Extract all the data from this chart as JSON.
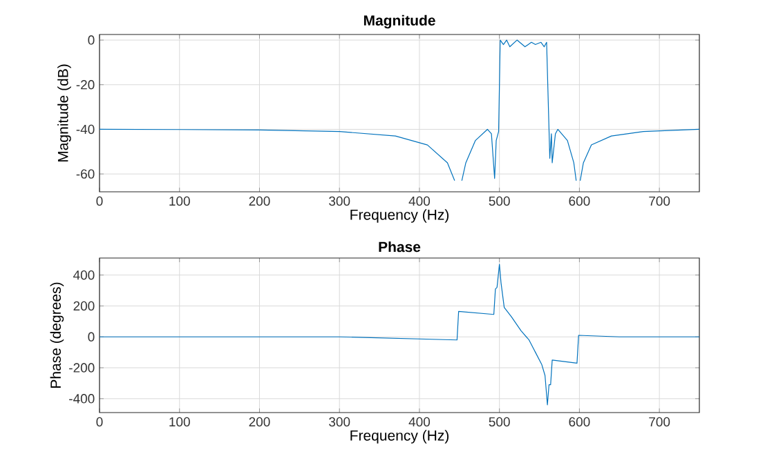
{
  "chart_data": [
    {
      "type": "line",
      "title": "Magnitude",
      "xlabel": "Frequency (Hz)",
      "ylabel": "Magnitude (dB)",
      "xlim": [
        0,
        750
      ],
      "ylim": [
        -68,
        2.5
      ],
      "xticks": [
        0,
        100,
        200,
        300,
        400,
        500,
        600,
        700
      ],
      "yticks": [
        -60,
        -40,
        -20,
        0
      ],
      "grid": true,
      "x": [
        0,
        100,
        200,
        300,
        370,
        410,
        435,
        444,
        448,
        453,
        458,
        470,
        485,
        490,
        494,
        496,
        499,
        501,
        505,
        509,
        513,
        522,
        532,
        540,
        545,
        552,
        556,
        559,
        562,
        563,
        565,
        566,
        570,
        573,
        585,
        593,
        596,
        598,
        601,
        605,
        615,
        640,
        680,
        750
      ],
      "series": [
        {
          "color": "#0072bd",
          "values": [
            -40,
            -40.1,
            -40.3,
            -41,
            -43,
            -47,
            -55,
            -63,
            null,
            -63,
            -55,
            -45,
            -40,
            -42,
            -62,
            -45,
            -41,
            0,
            -2,
            0,
            -3,
            0,
            -3,
            -1,
            -2,
            -1,
            -3,
            -1,
            -40,
            -53,
            -42,
            -55,
            -42,
            -40,
            -45,
            -55,
            -63,
            null,
            -63,
            -55,
            -47,
            -43,
            -41,
            -40
          ]
        }
      ]
    },
    {
      "type": "line",
      "title": "Phase",
      "xlabel": "Frequency (Hz)",
      "ylabel": "Phase (degrees)",
      "xlim": [
        0,
        750
      ],
      "ylim": [
        -490,
        510
      ],
      "xticks": [
        0,
        100,
        200,
        300,
        400,
        500,
        600,
        700
      ],
      "yticks": [
        -400,
        -200,
        0,
        200,
        400
      ],
      "grid": true,
      "x": [
        0,
        300,
        447,
        449,
        493,
        495,
        497,
        500,
        502,
        506,
        515,
        527,
        537,
        545,
        553,
        557,
        560,
        562,
        564,
        566,
        597,
        599,
        650,
        750
      ],
      "series": [
        {
          "color": "#0072bd",
          "values": [
            0,
            0,
            -20,
            165,
            145,
            310,
            320,
            470,
            350,
            190,
            130,
            40,
            -20,
            -100,
            -180,
            -250,
            -440,
            -310,
            -310,
            -150,
            -170,
            10,
            0,
            0
          ]
        }
      ]
    }
  ]
}
